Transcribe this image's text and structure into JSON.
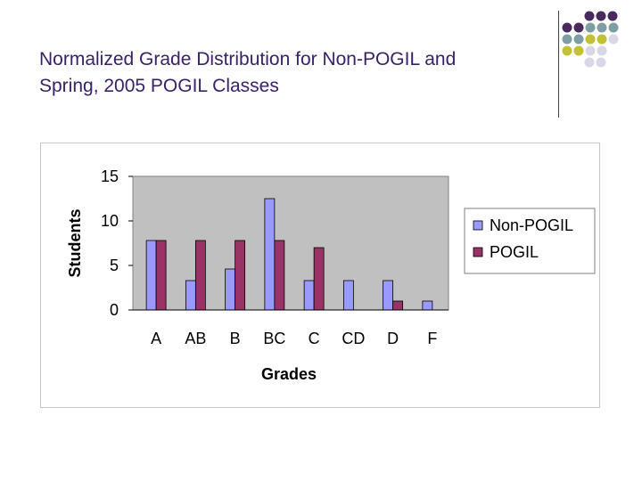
{
  "slide": {
    "title_line1": "Normalized Grade Distribution for Non-POGIL and",
    "title_line2": "Spring, 2005 POGIL Classes",
    "accent_colors": {
      "purple": "#4a2a5e",
      "teal": "#7f9ea4",
      "olive": "#c2c035",
      "lavender": "#d9d7e7"
    }
  },
  "chart_data": {
    "type": "bar",
    "title": "",
    "xlabel": "Grades",
    "ylabel": "Students",
    "ylim": [
      0,
      15
    ],
    "yticks": [
      0,
      5,
      10,
      15
    ],
    "grid": false,
    "legend_position": "right",
    "categories": [
      "A",
      "AB",
      "B",
      "BC",
      "C",
      "CD",
      "D",
      "F"
    ],
    "series": [
      {
        "name": "Non-POGIL",
        "color": "#9999ff",
        "values": [
          7.8,
          3.3,
          4.6,
          12.5,
          3.3,
          3.3,
          3.3,
          1.0
        ]
      },
      {
        "name": "POGIL",
        "color": "#993366",
        "values": [
          7.8,
          7.8,
          7.8,
          7.8,
          7.0,
          0,
          1.0,
          0
        ]
      }
    ],
    "plot_background": "#c0c0c0"
  }
}
